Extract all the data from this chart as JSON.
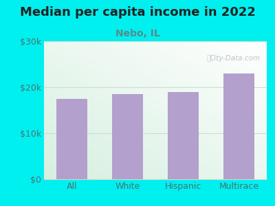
{
  "title": "Median per capita income in 2022",
  "subtitle": "Nebo, IL",
  "categories": [
    "All",
    "White",
    "Hispanic",
    "Multirace"
  ],
  "values": [
    17500,
    18500,
    19000,
    23000
  ],
  "bar_color": "#b3a0cc",
  "background_outer": "#00f0f0",
  "ylim": [
    0,
    30000
  ],
  "yticks": [
    0,
    10000,
    20000,
    30000
  ],
  "ytick_labels": [
    "$0",
    "$10k",
    "$20k",
    "$30k"
  ],
  "title_fontsize": 13,
  "subtitle_fontsize": 10,
  "tick_fontsize": 9,
  "title_color": "#222222",
  "subtitle_color": "#5a8a8a",
  "tick_color": "#4a7070",
  "watermark": "City-Data.com",
  "grid_color": "#ccddcc",
  "gradient_colors": [
    "#d8eed8",
    "#f0fff8",
    "#ffffff",
    "#f8ffff"
  ]
}
